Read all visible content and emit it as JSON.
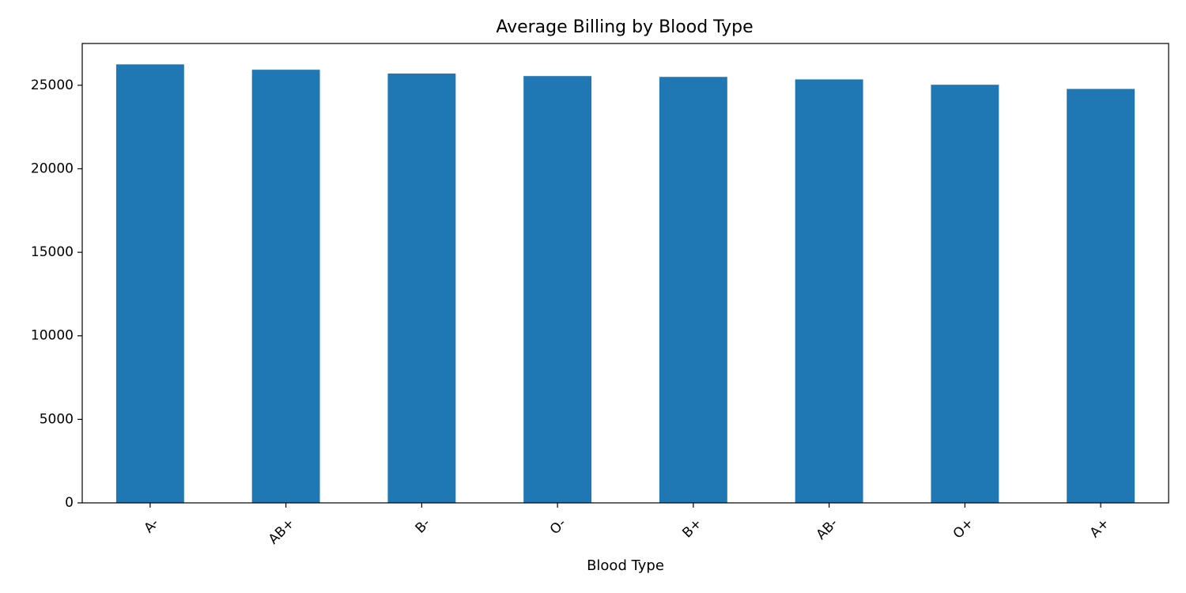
{
  "chart_data": {
    "type": "bar",
    "title": "Average Billing by Blood Type",
    "xlabel": "Blood Type",
    "ylabel": "",
    "categories": [
      "A-",
      "AB+",
      "B-",
      "O-",
      "B+",
      "AB-",
      "O+",
      "A+"
    ],
    "values": [
      26250,
      25930,
      25700,
      25550,
      25500,
      25350,
      25030,
      24780
    ],
    "ylim": [
      0,
      27500
    ],
    "yticks": [
      0,
      5000,
      10000,
      15000,
      20000,
      25000
    ],
    "ytick_labels": [
      "0",
      "5000",
      "10000",
      "15000",
      "20000",
      "25000"
    ],
    "grid": false,
    "legend": "none",
    "bar_color": "#1f77b4"
  }
}
